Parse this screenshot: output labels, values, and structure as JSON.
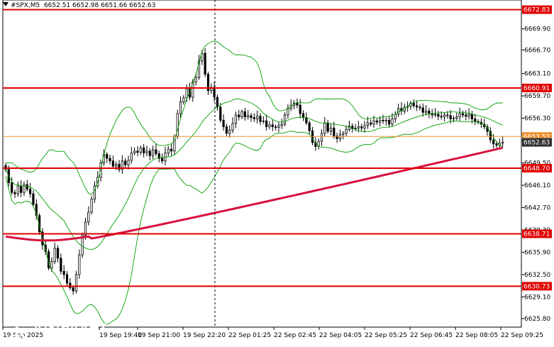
{
  "header": {
    "symbol": "#SPX,M5",
    "ohlc": "6652.51 6652.98 6651.66 6652.63"
  },
  "chart_data": {
    "type": "candlestick",
    "title": "#SPX,M5",
    "ylim": [
      6624.5,
      6674.3
    ],
    "yticks": [
      "6669.90",
      "6666.70",
      "6663.10",
      "6659.70",
      "6656.30",
      "6652.90",
      "6649.50",
      "6646.10",
      "6642.70",
      "6639.30",
      "6635.90",
      "6632.50",
      "6629.10",
      "6625.80"
    ],
    "xticks": [
      "19 Sep 2025",
      "19 Sep 19:40",
      "19 Sep 21:00",
      "19 Sep 22:20",
      "22 Sep 01:25",
      "22 Sep 02:45",
      "22 Sep 04:05",
      "22 Sep 05:25",
      "22 Sep 06:45",
      "22 Sep 08:05",
      "22 Sep 09:25"
    ],
    "levels": [
      {
        "value": 6672.83,
        "label": "6672.83",
        "color": "#e00000"
      },
      {
        "value": 6660.91,
        "label": "6660.91",
        "color": "#e00000"
      },
      {
        "value": 6653.53,
        "label": "6653.53",
        "color": "#f09030"
      },
      {
        "value": 6652.63,
        "label": "6652.63",
        "color": "#303030"
      },
      {
        "value": 6648.7,
        "label": "6648.70",
        "color": "#e00000"
      },
      {
        "value": 6638.71,
        "label": "6638.71",
        "color": "#e00000"
      },
      {
        "value": 6630.73,
        "label": "6630.73",
        "color": "#e00000"
      }
    ],
    "close": [
      6648.5,
      6646.5,
      6645.0,
      6644.8,
      6646.0,
      6645.0,
      6646.2,
      6645.5,
      6644.8,
      6643.2,
      6641.5,
      6639.0,
      6637.0,
      6636.0,
      6633.5,
      6634.5,
      6636.5,
      6635.0,
      6633.0,
      6632.5,
      6631.2,
      6630.5,
      6630.0,
      6632.5,
      6635.5,
      6638.5,
      6640.5,
      6642.0,
      6644.0,
      6646.0,
      6647.3,
      6649.5,
      6650.8,
      6650.2,
      6649.8,
      6649.0,
      6649.3,
      6648.5,
      6649.8,
      6649.2,
      6649.9,
      6651.0,
      6651.3,
      6651.1,
      6651.8,
      6651.0,
      6651.3,
      6650.6,
      6651.5,
      6650.9,
      6650.2,
      6649.8,
      6651.0,
      6651.6,
      6651.3,
      6653.5,
      6657.0,
      6658.8,
      6659.4,
      6660.8,
      6659.5,
      6661.8,
      6662.5,
      6665.0,
      6666.2,
      6663.0,
      6660.5,
      6661.0,
      6659.5,
      6658.0,
      6656.0,
      6655.0,
      6654.0,
      6654.5,
      6655.5,
      6656.8,
      6656.5,
      6657.3,
      6656.5,
      6656.7,
      6656.4,
      6656.2,
      6656.6,
      6655.8,
      6655.9,
      6655.0,
      6655.3,
      6655.0,
      6654.9,
      6655.2,
      6655.4,
      6656.8,
      6657.8,
      6658.3,
      6658.6,
      6658.3,
      6657.0,
      6656.4,
      6655.6,
      6654.4,
      6652.6,
      6652.0,
      6652.8,
      6654.0,
      6655.6,
      6654.3,
      6654.8,
      6653.6,
      6653.2,
      6653.8,
      6654.0,
      6654.6,
      6655.1,
      6654.7,
      6654.8,
      6655.0,
      6654.8,
      6655.2,
      6655.6,
      6655.4,
      6655.9,
      6655.7,
      6656.0,
      6655.9,
      6656.0,
      6655.4,
      6656.2,
      6656.9,
      6657.8,
      6657.4,
      6658.0,
      6658.1,
      6658.6,
      6658.2,
      6658.0,
      6657.9,
      6657.2,
      6657.4,
      6657.0,
      6656.8,
      6656.9,
      6656.6,
      6656.5,
      6656.8,
      6656.7,
      6656.2,
      6656.3,
      6656.5,
      6657.0,
      6656.8,
      6656.6,
      6656.9,
      6656.2,
      6655.8,
      6655.7,
      6655.4,
      6655.0,
      6654.3,
      6653.0,
      6652.4,
      6652.2,
      6652.5,
      6652.63
    ]
  }
}
